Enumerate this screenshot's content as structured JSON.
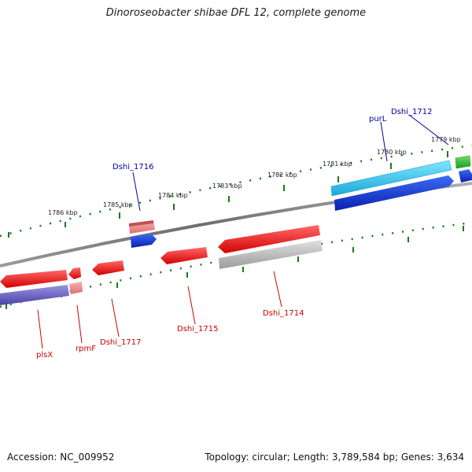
{
  "title": "Dinoroseobacter shibae DFL 12, complete genome",
  "footer": {
    "accession": "Accession: NC_009952",
    "topology": "Topology: circular; Length: 3,789,584 bp; Genes: 3,634"
  },
  "ticks": {
    "outer": [
      "1779 kbp",
      "1780 kbp",
      "1781 kbp",
      "1782 kbp",
      "1783 kbp",
      "1784 kbp",
      "1785 kbp",
      "1786 kbp"
    ]
  },
  "genes": {
    "outer": [
      "Dshi_1712",
      "purL",
      "Dshi_1716"
    ],
    "inner": [
      "Dshi_1714",
      "Dshi_1715",
      "Dshi_1717",
      "rpmF",
      "plsX"
    ]
  },
  "colors": {
    "forward_cds": "#2a63e6",
    "forward_light": "#3fc9f3",
    "reverse_cds": "#ee2222",
    "reverse_light": "#f09090",
    "grey_feature": "#b0b0b0",
    "purple_feature": "#7068c8",
    "green_feature": "#33bb33",
    "backbone": "#7a7a7a",
    "tick_green": "#1a7a1a"
  }
}
